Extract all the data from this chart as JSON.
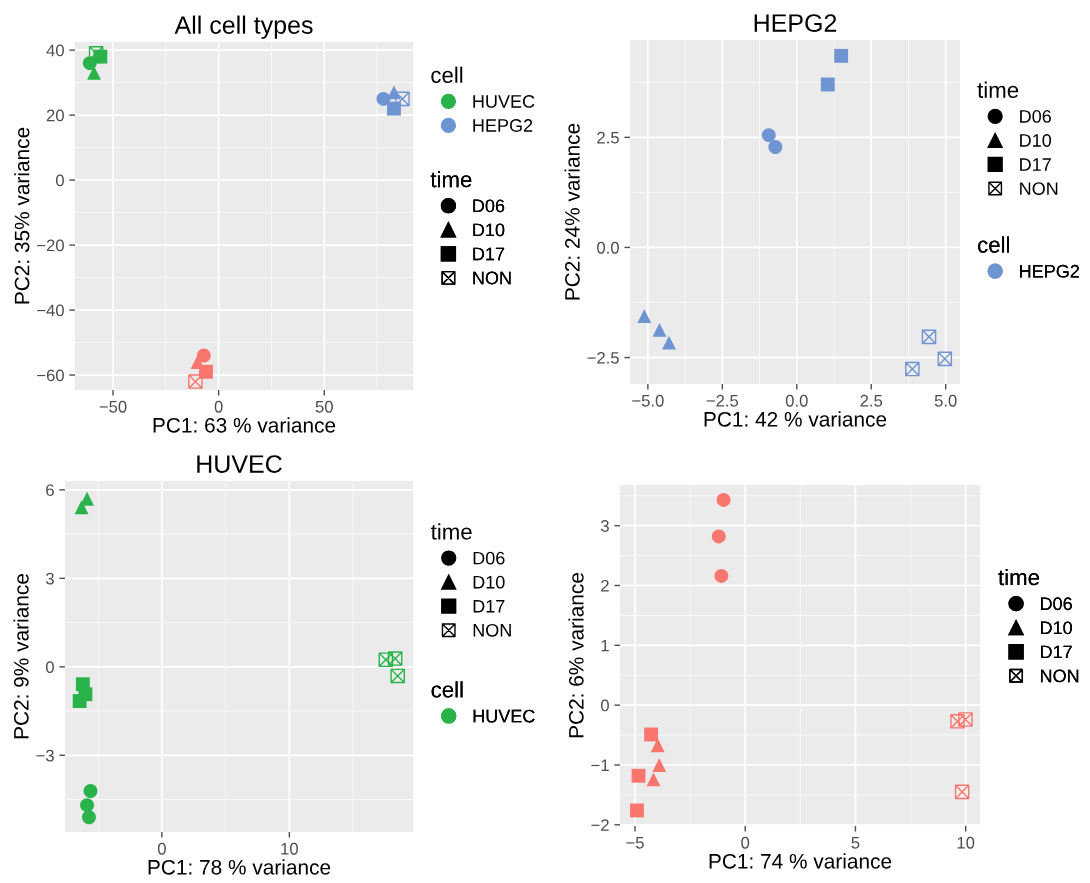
{
  "chart_data": [
    {
      "type": "scatter",
      "title": "All cell types",
      "xlabel": "PC1: 63 % variance",
      "ylabel": "PC2: 35% variance",
      "xlim": [
        -68,
        92
      ],
      "ylim": [
        -64.6,
        42.5
      ],
      "xticks": [
        {
          "value": -50,
          "label": "−50"
        },
        0,
        50
      ],
      "yticks": [
        {
          "value": -60,
          "label": "−60"
        },
        {
          "value": -40,
          "label": "−40"
        },
        {
          "value": -20,
          "label": "−20"
        },
        0,
        20,
        40
      ],
      "grid": true,
      "legend": "right",
      "legend_title": "cell",
      "annotations": [
        "time",
        "D06",
        "D10",
        "D17",
        "NON"
      ],
      "series": [
        {
          "name": "HUVEC",
          "color": "#29b34a",
          "marker": "circle",
          "x": [
            -61
          ],
          "values": [
            36
          ]
        },
        {
          "color": "#29b34a",
          "marker": "triangle",
          "x": [
            -59
          ],
          "values": [
            33
          ]
        },
        {
          "color": "#29b34a",
          "marker": "square",
          "x": [
            -56
          ],
          "values": [
            38
          ]
        },
        {
          "color": "#29b34a",
          "marker": "cross",
          "x": [
            -58
          ],
          "values": [
            39
          ]
        },
        {
          "name": "HEPG2",
          "color": "#6f94d2",
          "marker": "circle",
          "x": [
            78
          ],
          "values": [
            25
          ]
        },
        {
          "color": "#6f94d2",
          "marker": "triangle",
          "x": [
            83
          ],
          "values": [
            27
          ]
        },
        {
          "color": "#6f94d2",
          "marker": "square",
          "x": [
            83
          ],
          "values": [
            22
          ]
        },
        {
          "color": "#6f94d2",
          "marker": "cross",
          "x": [
            87
          ],
          "values": [
            25
          ]
        },
        {
          "color": "#f8766d",
          "marker": "circle",
          "x": [
            -7
          ],
          "values": [
            -54
          ]
        },
        {
          "color": "#f8766d",
          "marker": "triangle",
          "x": [
            -10
          ],
          "values": [
            -56
          ]
        },
        {
          "color": "#f8766d",
          "marker": "square",
          "x": [
            -6
          ],
          "values": [
            -59
          ]
        },
        {
          "color": "#f8766d",
          "marker": "cross",
          "x": [
            -11
          ],
          "values": [
            -62
          ]
        }
      ]
    },
    {
      "type": "scatter",
      "title": "HEPG2",
      "xlabel": "PC1: 42 % variance",
      "ylabel": "PC2: 24% variance",
      "xlim": [
        -5.6,
        5.48
      ],
      "ylim": [
        -3.1,
        4.71
      ],
      "xticks": [
        {
          "value": -5,
          "label": "−5.0"
        },
        {
          "value": -2.5,
          "label": "−2.5"
        },
        {
          "value": 0,
          "label": "0.0"
        },
        2.5,
        {
          "value": 5,
          "label": "5.0"
        }
      ],
      "yticks": [
        {
          "value": -2.5,
          "label": "−2.5"
        },
        {
          "value": 0,
          "label": "0.0"
        },
        2.5
      ],
      "grid": true,
      "legend": "right",
      "legend_title": "cell",
      "annotations": [
        "time",
        "D06",
        "D10",
        "D17",
        "NON"
      ],
      "series": [
        {
          "name": "HEPG2",
          "color": "#6f94d2",
          "marker": "circle",
          "x": [
            -0.94,
            -0.72
          ],
          "values": [
            2.55,
            2.28
          ]
        },
        {
          "color": "#6f94d2",
          "marker": "triangle",
          "x": [
            -5.12,
            -4.61,
            -4.29
          ],
          "values": [
            -1.56,
            -1.87,
            -2.16
          ]
        },
        {
          "color": "#6f94d2",
          "marker": "square",
          "x": [
            1.49,
            1.04
          ],
          "values": [
            4.35,
            3.7
          ]
        },
        {
          "color": "#6f94d2",
          "marker": "cross",
          "x": [
            4.44,
            4.97,
            3.88
          ],
          "values": [
            -2.03,
            -2.53,
            -2.76
          ]
        }
      ]
    },
    {
      "type": "scatter",
      "title": "HUVEC",
      "xlabel": "PC1: 78 % variance",
      "ylabel": "PC2: 9% variance",
      "xlim": [
        -7.6,
        19.7
      ],
      "ylim": [
        -5.6,
        6.3
      ],
      "xticks": [
        0,
        10
      ],
      "yticks": [
        {
          "value": -3,
          "label": "−3"
        },
        0,
        3,
        6
      ],
      "grid": true,
      "legend": "right",
      "legend_title": "cell",
      "annotations": [
        "time",
        "D06",
        "D10",
        "D17",
        "NON"
      ],
      "series": [
        {
          "name": "HUVEC",
          "color": "#29b34a",
          "marker": "circle",
          "x": [
            -5.6,
            -5.87,
            -5.72
          ],
          "values": [
            -4.21,
            -4.69,
            -5.1
          ]
        },
        {
          "color": "#29b34a",
          "marker": "triangle",
          "x": [
            -5.87,
            -6.3
          ],
          "values": [
            5.7,
            5.41
          ]
        },
        {
          "color": "#29b34a",
          "marker": "square",
          "x": [
            -6.2,
            -6.0,
            -6.45
          ],
          "values": [
            -0.59,
            -0.93,
            -1.16
          ]
        },
        {
          "color": "#29b34a",
          "marker": "cross",
          "x": [
            17.57,
            18.3,
            18.5
          ],
          "values": [
            0.24,
            0.28,
            -0.31
          ]
        }
      ]
    },
    {
      "type": "scatter",
      "xlabel": "PC1: 74 % variance",
      "ylabel": "PC2: 6% variance",
      "xlim": [
        -5.68,
        10.65
      ],
      "ylim": [
        -2.02,
        3.68
      ],
      "xticks": [
        {
          "value": -5,
          "label": "−5"
        },
        0,
        5,
        10
      ],
      "yticks": [
        {
          "value": -2,
          "label": "−2"
        },
        {
          "value": -1,
          "label": "−1"
        },
        0,
        1,
        2,
        3
      ],
      "grid": true,
      "annotations": [
        "time",
        "D06",
        "D10",
        "D17",
        "NON"
      ],
      "series": [
        {
          "color": "#f8766d",
          "marker": "circle",
          "x": [
            -0.98,
            -1.2,
            -1.08
          ],
          "values": [
            3.43,
            2.82,
            2.16
          ]
        },
        {
          "color": "#f8766d",
          "marker": "triangle",
          "x": [
            -3.97,
            -3.9,
            -4.16
          ],
          "values": [
            -0.67,
            -1.0,
            -1.24
          ]
        },
        {
          "color": "#f8766d",
          "marker": "square",
          "x": [
            -4.27,
            -4.84,
            -4.91
          ],
          "values": [
            -0.49,
            -1.18,
            -1.76
          ]
        },
        {
          "color": "#f8766d",
          "marker": "cross",
          "x": [
            9.63,
            9.99,
            9.84
          ],
          "values": [
            -0.27,
            -0.24,
            -1.45
          ]
        }
      ]
    }
  ]
}
